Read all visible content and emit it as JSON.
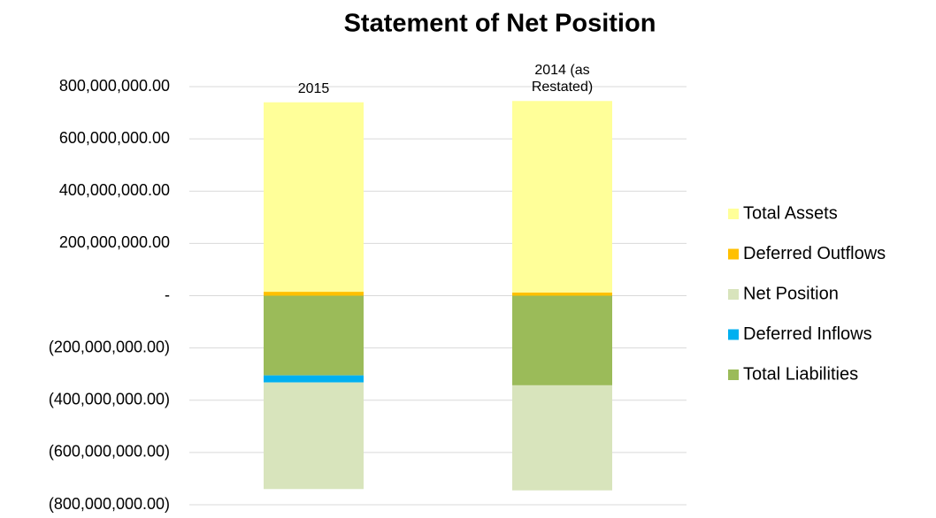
{
  "chart_data": {
    "type": "stacked_bar",
    "title": "Statement of Net Position",
    "categories": [
      "2015",
      "2014 (as Restated)"
    ],
    "series": [
      {
        "name": "Total Assets",
        "color": "#ffff99",
        "values": [
          725000000,
          733000000
        ]
      },
      {
        "name": "Deferred Outflows",
        "color": "#ffc000",
        "values": [
          15000000,
          12000000
        ]
      },
      {
        "name": "Net Position",
        "color": "#d8e4bc",
        "values": [
          -408000000,
          -402000000
        ]
      },
      {
        "name": "Deferred Inflows",
        "color": "#00b0f0",
        "values": [
          -27000000,
          0
        ]
      },
      {
        "name": "Total Liabilities",
        "color": "#9bbb59",
        "values": [
          -305000000,
          -343000000
        ]
      }
    ],
    "ylim": [
      -800000000,
      800000000
    ],
    "yticks": [
      {
        "value": 800000000,
        "label": "800,000,000.00"
      },
      {
        "value": 600000000,
        "label": "600,000,000.00"
      },
      {
        "value": 400000000,
        "label": "400,000,000.00"
      },
      {
        "value": 200000000,
        "label": "200,000,000.00"
      },
      {
        "value": 0,
        "label": "-"
      },
      {
        "value": -200000000,
        "label": "(200,000,000.00)"
      },
      {
        "value": -400000000,
        "label": "(400,000,000.00)"
      },
      {
        "value": -600000000,
        "label": "(600,000,000.00)"
      },
      {
        "value": -800000000,
        "label": "(800,000,000.00)"
      }
    ],
    "grid": true,
    "legend": "right"
  }
}
